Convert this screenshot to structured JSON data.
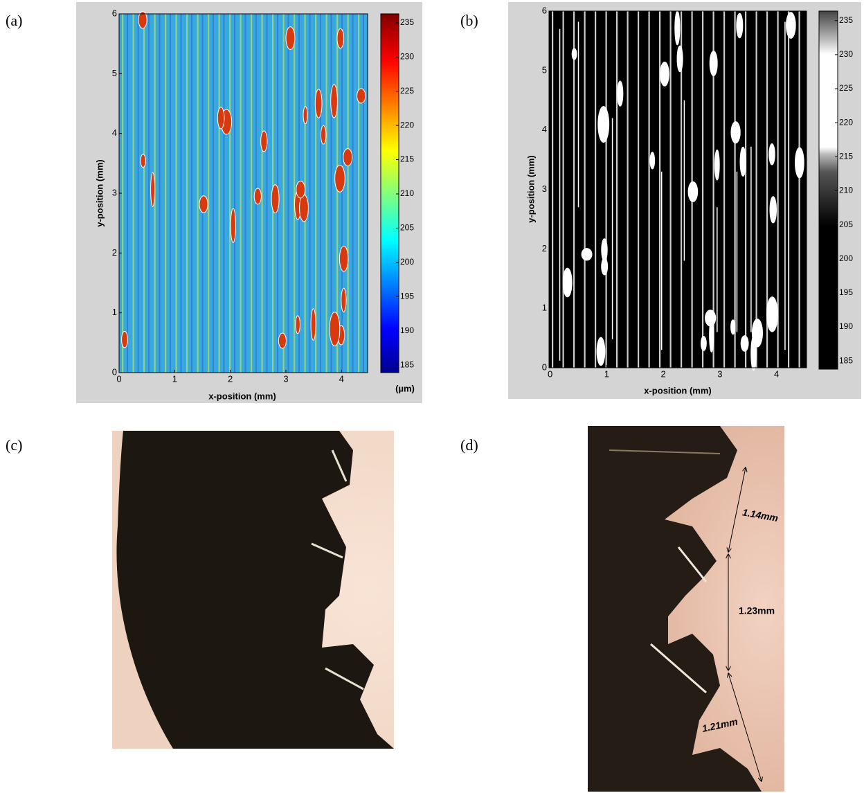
{
  "panels": [
    {
      "label": "(a)"
    },
    {
      "label": "(b)"
    },
    {
      "label": "(c)"
    },
    {
      "label": "(d)",
      "annotations": [
        "1.14mm",
        "1.23mm",
        "1.21mm"
      ]
    }
  ],
  "chart_data": [
    {
      "type": "heatmap",
      "xlabel": "x-position (mm)",
      "ylabel": "y-position (mm)",
      "xlim": [
        0,
        4.47
      ],
      "ylim": [
        0,
        6
      ],
      "xticks": [
        0,
        1,
        2,
        3,
        4
      ],
      "yticks": [
        0,
        1,
        2,
        3,
        4,
        5,
        6
      ],
      "colormap": "jet",
      "clim": [
        183.9,
        236.3
      ],
      "cticks": [
        185,
        190,
        195,
        200,
        205,
        210,
        215,
        220,
        225,
        230,
        235
      ],
      "colorbar_label": "(µm)"
    },
    {
      "type": "heatmap",
      "xlabel": "x-position (mm)",
      "ylabel": "y-position (mm)",
      "xlim": [
        -0.02,
        4.53
      ],
      "ylim": [
        0,
        6
      ],
      "xticks": [
        0,
        1,
        2,
        3,
        4
      ],
      "yticks": [
        0,
        1,
        2,
        3,
        4,
        5,
        6
      ],
      "colormap": "gray-threshold",
      "clim": [
        183.8,
        236.4
      ],
      "cticks": [
        185,
        190,
        195,
        200,
        205,
        210,
        215,
        220,
        225,
        230,
        235
      ]
    }
  ]
}
